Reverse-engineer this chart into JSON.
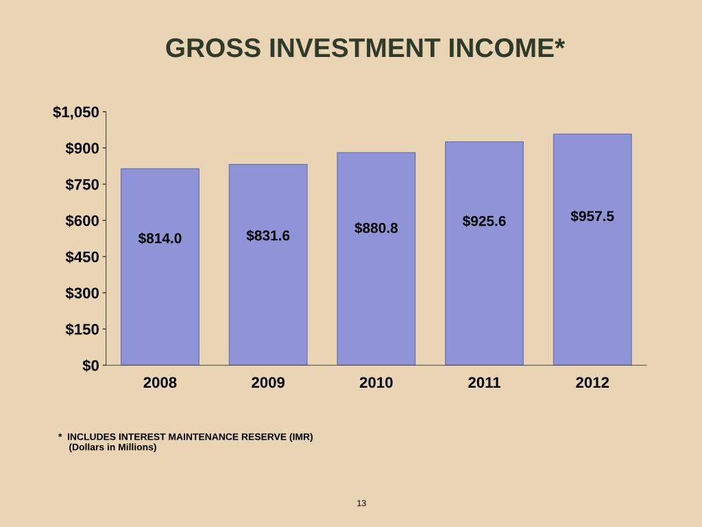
{
  "chart_data": {
    "type": "bar",
    "title": "GROSS INVESTMENT INCOME*",
    "categories": [
      "2008",
      "2009",
      "2010",
      "2011",
      "2012"
    ],
    "values": [
      814.0,
      831.6,
      880.8,
      925.6,
      957.5
    ],
    "value_labels": [
      "$814.0",
      "$831.6",
      "$880.8",
      "$925.6",
      "$957.5"
    ],
    "color": "#8e94d6",
    "ylim": [
      0,
      1050
    ],
    "yticks": [
      {
        "value": 0,
        "label": "$0"
      },
      {
        "value": 150,
        "label": "$150"
      },
      {
        "value": 300,
        "label": "$300"
      },
      {
        "value": 450,
        "label": "$450"
      },
      {
        "value": 600,
        "label": "$600"
      },
      {
        "value": 750,
        "label": "$750"
      },
      {
        "value": 900,
        "label": "$900"
      },
      {
        "value": 1050,
        "label": "$1,050"
      }
    ],
    "grid": false,
    "annotations": [
      "*  INCLUDES INTEREST MAINTENANCE RESERVE (IMR)\n    (Dollars in Millions)",
      "13"
    ]
  }
}
